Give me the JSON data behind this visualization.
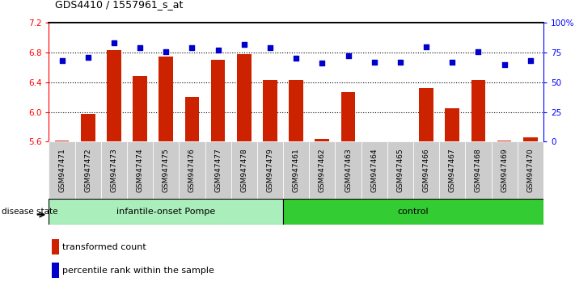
{
  "title": "GDS4410 / 1557961_s_at",
  "samples": [
    "GSM947471",
    "GSM947472",
    "GSM947473",
    "GSM947474",
    "GSM947475",
    "GSM947476",
    "GSM947477",
    "GSM947478",
    "GSM947479",
    "GSM947461",
    "GSM947462",
    "GSM947463",
    "GSM947464",
    "GSM947465",
    "GSM947466",
    "GSM947467",
    "GSM947468",
    "GSM947469",
    "GSM947470"
  ],
  "bar_values": [
    5.61,
    5.97,
    6.83,
    6.49,
    6.75,
    6.2,
    6.7,
    6.78,
    6.43,
    6.43,
    5.63,
    6.27,
    5.57,
    5.53,
    6.32,
    6.05,
    6.43,
    5.61,
    5.66
  ],
  "blue_values": [
    68,
    71,
    83,
    79,
    76,
    79,
    77,
    82,
    79,
    70,
    66,
    72,
    67,
    67,
    80,
    67,
    76,
    65,
    68
  ],
  "group1_label": "infantile-onset Pompe",
  "group2_label": "control",
  "group1_count": 9,
  "group2_count": 10,
  "ylim_left": [
    5.6,
    7.2
  ],
  "ylim_right": [
    0,
    100
  ],
  "yticks_left": [
    5.6,
    6.0,
    6.4,
    6.8,
    7.2
  ],
  "yticks_right": [
    0,
    25,
    50,
    75,
    100
  ],
  "bar_color": "#cc2200",
  "blue_color": "#0000cc",
  "group1_bg": "#aaeebb",
  "group2_bg": "#33cc33",
  "xtick_bg": "#cccccc",
  "legend_bar_label": "transformed count",
  "legend_blue_label": "percentile rank within the sample",
  "disease_state_label": "disease state"
}
